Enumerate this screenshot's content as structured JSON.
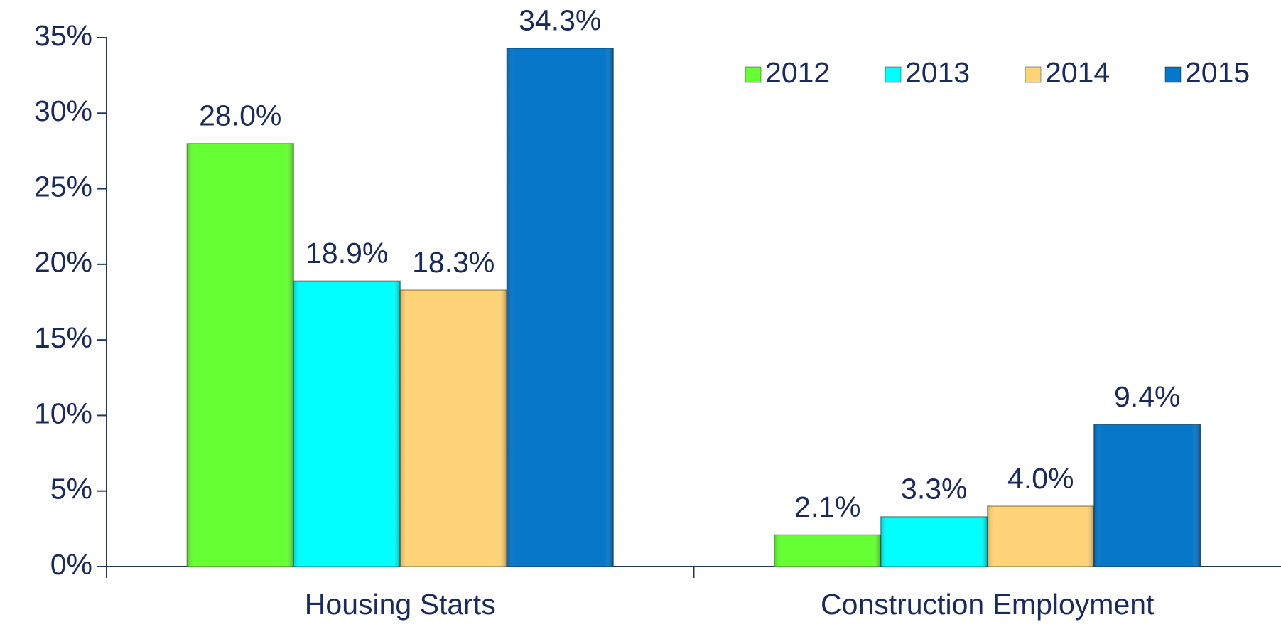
{
  "chart_data": {
    "type": "bar",
    "categories": [
      "Housing Starts",
      "Construction Employment"
    ],
    "series": [
      {
        "name": "2012",
        "color": "#66ff33",
        "values": [
          28.0,
          2.1
        ],
        "value_labels": [
          "28.0%",
          "2.1%"
        ]
      },
      {
        "name": "2013",
        "color": "#00ffff",
        "values": [
          18.9,
          3.3
        ],
        "value_labels": [
          "18.9%",
          "3.3%"
        ]
      },
      {
        "name": "2014",
        "color": "#ffd479",
        "values": [
          18.3,
          4.0
        ],
        "value_labels": [
          "18.3%",
          "4.0%"
        ]
      },
      {
        "name": "2015",
        "color": "#0677c9",
        "values": [
          34.3,
          9.4
        ],
        "value_labels": [
          "34.3%",
          "9.4%"
        ]
      }
    ],
    "ylim": [
      0,
      35
    ],
    "yticks": [
      {
        "value": 0,
        "label": "0%"
      },
      {
        "value": 5,
        "label": "5%"
      },
      {
        "value": 10,
        "label": "10%"
      },
      {
        "value": 15,
        "label": "15%"
      },
      {
        "value": 20,
        "label": "20%"
      },
      {
        "value": 25,
        "label": "25%"
      },
      {
        "value": 30,
        "label": "30%"
      },
      {
        "value": 35,
        "label": "35%"
      }
    ],
    "grid": false,
    "legend": "top-right"
  }
}
